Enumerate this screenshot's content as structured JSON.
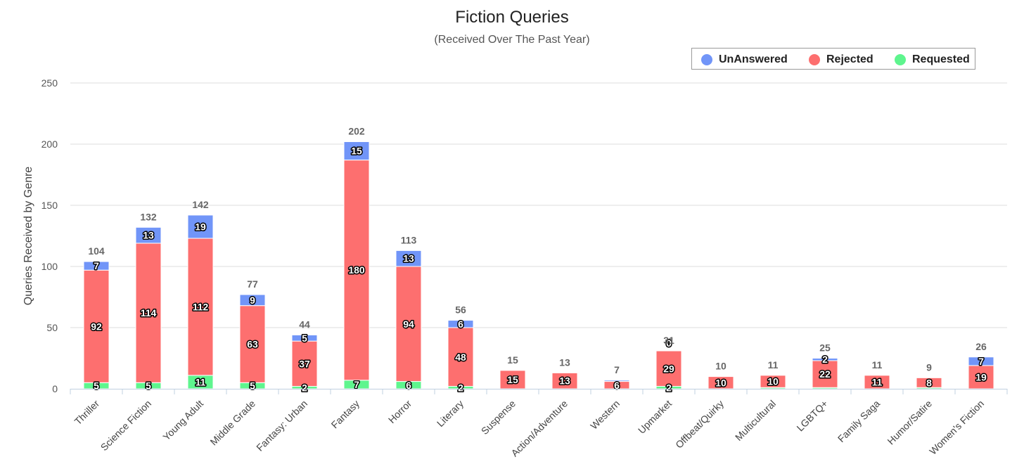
{
  "chart_data": {
    "type": "bar",
    "stacked": true,
    "title": "Fiction Queries",
    "subtitle": "(Received Over The Past Year)",
    "xlabel": "",
    "ylabel": "Queries Received by Genre",
    "ylim": [
      0,
      250
    ],
    "yticks": [
      0,
      50,
      100,
      150,
      200,
      250
    ],
    "grid": true,
    "legend_position": "top-right",
    "categories": [
      "Thriller",
      "Science Fiction",
      "Young Adult",
      "Middle Grade",
      "Fantasy: Urban",
      "Fantasy",
      "Horror",
      "Literary",
      "Suspense",
      "Action/Adventure",
      "Western",
      "Upmarket",
      "Offbeat/Quirky",
      "Multicultural",
      "LGBTQ+",
      "Family Saga",
      "Humor/Satire",
      "Women's Fiction"
    ],
    "series": [
      {
        "name": "Requested",
        "color": "#5ef58e",
        "values": [
          5,
          5,
          11,
          5,
          2,
          7,
          6,
          2,
          0,
          0,
          0,
          2,
          0,
          1,
          1,
          0,
          1,
          0
        ],
        "labels": [
          "5",
          "5",
          "11",
          "5",
          "2",
          "7",
          "6",
          "2",
          "",
          "",
          "",
          "2",
          "",
          "",
          "",
          "",
          "",
          ""
        ]
      },
      {
        "name": "Rejected",
        "color": "#fd6f6f",
        "values": [
          92,
          114,
          112,
          63,
          37,
          180,
          94,
          48,
          15,
          13,
          6,
          29,
          10,
          10,
          22,
          11,
          8,
          19
        ],
        "labels": [
          "92",
          "114",
          "112",
          "63",
          "37",
          "180",
          "94",
          "48",
          "15",
          "13",
          "6",
          "29",
          "10",
          "10",
          "22",
          "11",
          "8",
          "19"
        ]
      },
      {
        "name": "UnAnswered",
        "color": "#7195f8",
        "values": [
          7,
          13,
          19,
          9,
          5,
          15,
          13,
          6,
          0,
          0,
          1,
          0,
          0,
          0,
          2,
          0,
          0,
          7
        ],
        "labels": [
          "7",
          "13",
          "19",
          "9",
          "5",
          "15",
          "13",
          "6",
          "",
          "",
          "",
          "0",
          "",
          "",
          "2",
          "",
          "",
          "7"
        ]
      }
    ],
    "totals": [
      104,
      132,
      142,
      77,
      44,
      202,
      113,
      56,
      15,
      13,
      7,
      31,
      10,
      11,
      25,
      11,
      9,
      26
    ],
    "legend_order": [
      "UnAnswered",
      "Rejected",
      "Requested"
    ]
  }
}
